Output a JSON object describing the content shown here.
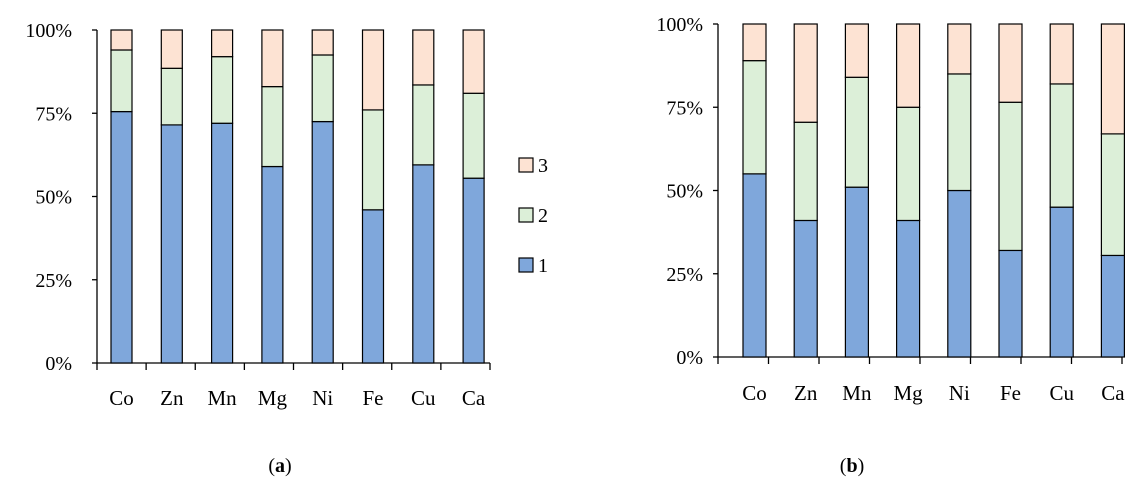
{
  "colors": {
    "1": "#7fa7db",
    "2": "#dcefd8",
    "3": "#fde3d3",
    "stroke": "#000000"
  },
  "chart_data": [
    {
      "type": "bar",
      "stacked": true,
      "percent": true,
      "caption_letter": "a",
      "categories": [
        "Co",
        "Zn",
        "Mn",
        "Mg",
        "Ni",
        "Fe",
        "Cu",
        "Ca"
      ],
      "yticks": [
        "0%",
        "25%",
        "50%",
        "75%",
        "100%"
      ],
      "ylim": [
        0,
        100
      ],
      "legend": {
        "position": "right",
        "entries": [
          "3",
          "2",
          "1"
        ]
      },
      "series": [
        {
          "name": "1",
          "values": [
            75.5,
            71.5,
            72,
            59,
            72.5,
            46,
            59.5,
            55.5
          ]
        },
        {
          "name": "2",
          "values": [
            18.5,
            17,
            20,
            24,
            20,
            30,
            24,
            25.5
          ]
        },
        {
          "name": "3",
          "values": [
            6,
            11.5,
            8,
            17,
            7.5,
            24,
            16.5,
            19
          ]
        }
      ]
    },
    {
      "type": "bar",
      "stacked": true,
      "percent": true,
      "caption_letter": "b",
      "categories": [
        "Co",
        "Zn",
        "Mn",
        "Mg",
        "Ni",
        "Fe",
        "Cu",
        "Ca"
      ],
      "yticks": [
        "0%",
        "25%",
        "50%",
        "75%",
        "100%"
      ],
      "ylim": [
        0,
        100
      ],
      "series": [
        {
          "name": "1",
          "values": [
            55,
            41,
            51,
            41,
            50,
            32,
            45,
            30.5
          ]
        },
        {
          "name": "2",
          "values": [
            34,
            29.5,
            33,
            34,
            35,
            44.5,
            37,
            36.5
          ]
        },
        {
          "name": "3",
          "values": [
            11,
            29.5,
            16,
            25,
            15,
            23.5,
            18,
            33
          ]
        }
      ]
    }
  ]
}
